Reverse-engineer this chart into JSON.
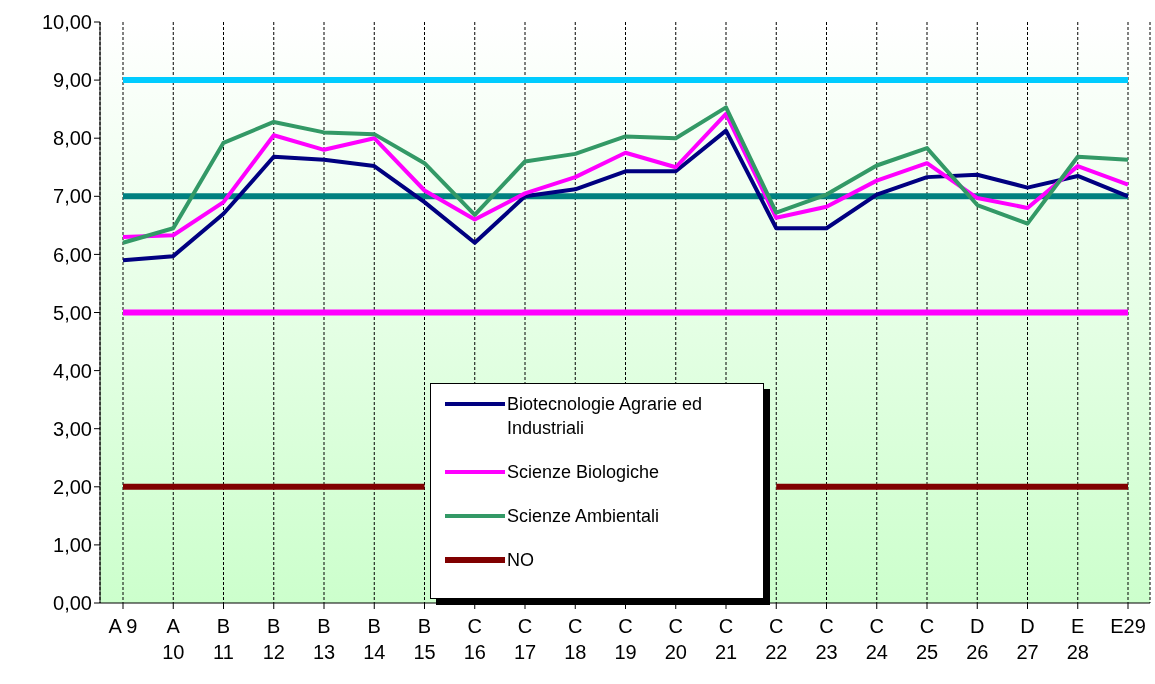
{
  "chart_data": {
    "type": "line",
    "categories": [
      "A 9",
      "A 10",
      "B 11",
      "B 12",
      "B 13",
      "B 14",
      "B 15",
      "C 16",
      "C 17",
      "C 18",
      "C 19",
      "C 20",
      "C 21",
      "C 22",
      "C 23",
      "C 24",
      "C 25",
      "D 26",
      "D 27",
      "E 28",
      "E29"
    ],
    "series": [
      {
        "name": "Biotecnologie Agrarie ed Industriali",
        "color": "#000080",
        "values": [
          5.9,
          5.97,
          6.7,
          7.68,
          7.63,
          7.52,
          6.9,
          6.2,
          7.0,
          7.12,
          7.43,
          7.43,
          8.13,
          6.45,
          6.45,
          7.03,
          7.33,
          7.37,
          7.15,
          7.35,
          7.0
        ]
      },
      {
        "name": "Scienze Biologiche",
        "color": "#ff00ff",
        "values": [
          6.3,
          6.33,
          6.9,
          8.05,
          7.8,
          8.0,
          7.1,
          6.6,
          7.05,
          7.33,
          7.75,
          7.5,
          8.42,
          6.63,
          6.82,
          7.27,
          7.57,
          6.97,
          6.8,
          7.52,
          7.2
        ]
      },
      {
        "name": "Scienze Ambientali",
        "color": "#339966",
        "values": [
          6.2,
          6.45,
          7.92,
          8.28,
          8.1,
          8.07,
          7.57,
          6.68,
          7.6,
          7.73,
          8.03,
          8.0,
          8.53,
          6.72,
          7.03,
          7.53,
          7.83,
          6.85,
          6.53,
          7.68,
          7.63
        ]
      },
      {
        "name": "NO",
        "color": "#800000",
        "values": [
          2,
          2,
          2,
          2,
          2,
          2,
          2,
          null,
          null,
          null,
          null,
          null,
          null,
          2,
          2,
          2,
          2,
          2,
          2,
          2,
          2
        ]
      }
    ],
    "ref_lines": [
      {
        "axis": "y",
        "value": 9,
        "color": "#00ccff"
      },
      {
        "axis": "y",
        "value": 7,
        "color": "#008080"
      },
      {
        "axis": "y",
        "value": 5,
        "color": "#ff00ff"
      }
    ],
    "ylim": [
      0,
      10
    ],
    "yticks": [
      {
        "value": 0,
        "label": "0,00"
      },
      {
        "value": 1,
        "label": "1,00"
      },
      {
        "value": 2,
        "label": "2,00"
      },
      {
        "value": 3,
        "label": "3,00"
      },
      {
        "value": 4,
        "label": "4,00"
      },
      {
        "value": 5,
        "label": "5,00"
      },
      {
        "value": 6,
        "label": "6,00"
      },
      {
        "value": 7,
        "label": "7,00"
      },
      {
        "value": 8,
        "label": "8,00"
      },
      {
        "value": 9,
        "label": "9,00"
      },
      {
        "value": 10,
        "label": "10,00"
      }
    ],
    "grid": "x",
    "legend": "bottom",
    "marker": "none",
    "line_style": "solid"
  }
}
